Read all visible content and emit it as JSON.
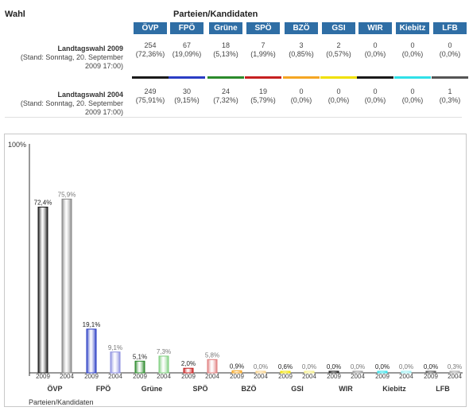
{
  "header": {
    "wahl_label": "Wahl",
    "parteien_label": "Parteien/Kandidaten"
  },
  "parties": [
    {
      "name": "ÖVP",
      "color": "#1a1a1a",
      "color2004": "#888888"
    },
    {
      "name": "FPÖ",
      "color": "#2a3cc4",
      "color2004": "#8c8fe0"
    },
    {
      "name": "Grüne",
      "color": "#2b8a2b",
      "color2004": "#7fcf7f"
    },
    {
      "name": "SPÖ",
      "color": "#c62020",
      "color2004": "#e07e7e"
    },
    {
      "name": "BZÖ",
      "color": "#f5a623",
      "color2004": "#f8d28a"
    },
    {
      "name": "GSI",
      "color": "#f0e000",
      "color2004": "#f5ef88"
    },
    {
      "name": "WIR",
      "color": "#1a1a1a",
      "color2004": "#9a9a9a"
    },
    {
      "name": "Kiebitz",
      "color": "#30e0e8",
      "color2004": "#9ef0f3"
    },
    {
      "name": "LFB",
      "color": "#555555",
      "color2004": "#aaaaaa"
    }
  ],
  "rows": [
    {
      "title": "Landtagswahl 2009",
      "subtitle1": "(Stand: Sonntag, 20. September",
      "subtitle2": "2009 17:00)",
      "votes": [
        "254",
        "67",
        "18",
        "7",
        "3",
        "2",
        "0",
        "0",
        "0"
      ],
      "percents": [
        "(72,36%)",
        "(19,09%)",
        "(5,13%)",
        "(1,99%)",
        "(0,85%)",
        "(0,57%)",
        "(0,0%)",
        "(0,0%)",
        "(0,0%)"
      ]
    },
    {
      "title": "Landtagswahl 2004",
      "subtitle1": "(Stand: Sonntag, 20. September",
      "subtitle2": "2009 17:00)",
      "votes": [
        "249",
        "30",
        "24",
        "19",
        "0",
        "0",
        "0",
        "0",
        "1"
      ],
      "percents": [
        "(75,91%)",
        "(9,15%)",
        "(7,32%)",
        "(5,79%)",
        "(0,0%)",
        "(0,0%)",
        "(0,0%)",
        "(0,0%)",
        "(0,3%)"
      ]
    }
  ],
  "chart_data": {
    "type": "bar",
    "categories": [
      "ÖVP",
      "FPÖ",
      "Grüne",
      "SPÖ",
      "BZÖ",
      "GSI",
      "WIR",
      "Kiebitz",
      "LFB"
    ],
    "series": [
      {
        "name": "2009",
        "values": [
          72.4,
          19.1,
          5.1,
          2.0,
          0.9,
          0.6,
          0.0,
          0.0,
          0.0
        ],
        "labels": [
          "72,4%",
          "19,1%",
          "5,1%",
          "2,0%",
          "0,9%",
          "0,6%",
          "0,0%",
          "0,0%",
          "0,0%"
        ]
      },
      {
        "name": "2004",
        "values": [
          75.9,
          9.1,
          7.3,
          5.8,
          0.0,
          0.0,
          0.0,
          0.0,
          0.3
        ],
        "labels": [
          "75,9%",
          "9,1%",
          "7,3%",
          "5,8%",
          "0,0%",
          "0,0%",
          "0,0%",
          "0,0%",
          "0,3%"
        ]
      }
    ],
    "ylim": [
      0,
      100
    ],
    "ymax_label": "100%",
    "xlabel": "Parteien/Kandidaten",
    "grid": false,
    "legend": "none"
  }
}
